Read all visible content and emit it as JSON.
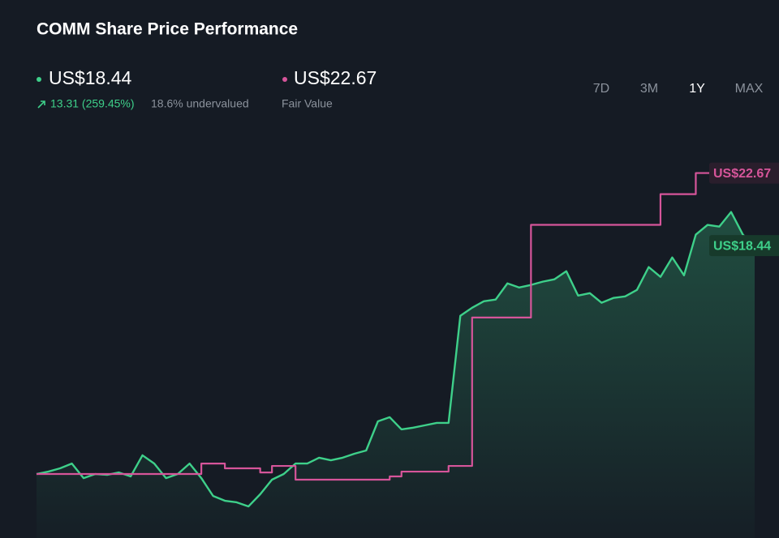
{
  "chart_data": {
    "type": "line",
    "title": "COMM Share Price Performance",
    "price_label": "US$18.44",
    "change_label": "13.31 (259.45%)",
    "valuation_label": "18.6% undervalued",
    "fair_value_label": "US$22.67",
    "fair_value_caption": "Fair Value",
    "ranges": [
      "7D",
      "3M",
      "1Y",
      "MAX"
    ],
    "active_range": "1Y",
    "ylim": [
      1.4,
      25.2
    ],
    "series": [
      {
        "color": "#3ed08a",
        "area": true,
        "values": [
          5.13,
          5.27,
          5.46,
          5.74,
          4.89,
          5.13,
          5.08,
          5.22,
          4.99,
          6.22,
          5.74,
          4.89,
          5.13,
          5.74,
          4.89,
          3.85,
          3.57,
          3.48,
          3.24,
          3.95,
          4.8,
          5.13,
          5.74,
          5.74,
          6.08,
          5.93,
          6.08,
          6.31,
          6.5,
          8.2,
          8.44,
          7.73,
          7.83,
          7.97,
          8.11,
          8.11,
          14.35,
          14.82,
          15.2,
          15.3,
          16.24,
          16.0,
          16.15,
          16.34,
          16.48,
          16.95,
          15.53,
          15.67,
          15.11,
          15.39,
          15.48,
          15.86,
          17.19,
          16.62,
          17.75,
          16.71,
          19.08,
          19.65,
          19.55,
          20.4,
          19.08,
          18.44
        ]
      },
      {
        "color": "#d6559a",
        "step": true,
        "values": [
          5.13,
          5.13,
          5.13,
          5.13,
          5.13,
          5.13,
          5.13,
          5.13,
          5.13,
          5.13,
          5.13,
          5.13,
          5.13,
          5.13,
          5.74,
          5.74,
          5.46,
          5.46,
          5.46,
          5.22,
          5.6,
          5.6,
          4.8,
          4.8,
          4.8,
          4.8,
          4.8,
          4.8,
          4.8,
          4.8,
          4.99,
          5.27,
          5.27,
          5.27,
          5.27,
          5.6,
          5.6,
          14.25,
          14.25,
          14.25,
          14.25,
          14.25,
          19.65,
          19.65,
          19.65,
          19.65,
          19.65,
          19.65,
          19.65,
          19.65,
          19.65,
          19.65,
          19.65,
          21.44,
          21.44,
          21.44,
          22.67,
          22.67,
          22.67,
          22.67,
          22.67,
          22.67
        ]
      }
    ]
  }
}
